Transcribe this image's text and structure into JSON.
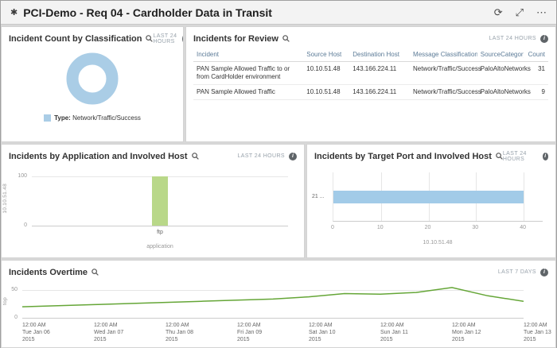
{
  "header": {
    "title": "PCI-Demo - Req 04 - Cardholder Data in Transit"
  },
  "icons": {
    "app": "✱",
    "refresh": "⟳",
    "expand": "⤢",
    "more": "⋯",
    "info": "i"
  },
  "panels": {
    "classification": {
      "title": "Incident Count by Classification",
      "time_range": "LAST 24 HOURS",
      "legend_label": "Type:",
      "legend_value": "Network/Traffic/Success"
    },
    "review": {
      "title": "Incidents for Review",
      "time_range": "LAST 24 HOURS",
      "columns": [
        "Incident",
        "Source Host",
        "Destination Host",
        "Message Classification",
        "SourceCategory",
        "Count"
      ],
      "rows": [
        [
          "PAN Sample Allowed Traffic to or from CardHolder environment",
          "10.10.51.48",
          "143.166.224.11",
          "Network/Traffic/Success",
          "PaloAltoNetworks",
          "31"
        ],
        [
          "PAN Sample Allowed Traffic",
          "10.10.51.48",
          "143.166.224.11",
          "Network/Traffic/Success",
          "PaloAltoNetworks",
          "9"
        ]
      ]
    },
    "by_application": {
      "title": "Incidents by Application and Involved Host",
      "time_range": "LAST 24 HOURS"
    },
    "by_port": {
      "title": "Incidents by Target Port and Involved Host",
      "time_range": "LAST 24 HOURS"
    },
    "overtime": {
      "title": "Incidents Overtime",
      "time_range": "LAST 7 DAYS"
    }
  },
  "chart_data": [
    {
      "id": "incident-count-by-classification",
      "type": "pie",
      "donut": true,
      "labels": [
        "Network/Traffic/Success"
      ],
      "values": [
        40
      ],
      "colors": [
        "#aacde6"
      ],
      "legend_position": "bottom"
    },
    {
      "id": "incidents-by-application-and-involved-host",
      "type": "bar",
      "categories": [
        "ftp"
      ],
      "series": [
        {
          "name": "10.10.51.48",
          "values": [
            100
          ],
          "color": "#b9d889"
        }
      ],
      "xlabel": "application",
      "ylabel": "10.10.51.48",
      "yticks": [
        0,
        100
      ],
      "ylim": [
        0,
        112
      ],
      "grid": true
    },
    {
      "id": "incidents-by-target-port-and-involved-host",
      "type": "bar-horizontal",
      "categories": [
        "21 ..."
      ],
      "series": [
        {
          "name": "10.10.51.48",
          "values": [
            40
          ],
          "color": "#a2cbe8"
        }
      ],
      "xlabel": "10.10.51.48",
      "xticks": [
        0,
        10,
        20,
        30,
        40
      ],
      "xlim": [
        0,
        44
      ],
      "grid": true
    },
    {
      "id": "incidents-overtime",
      "type": "line",
      "ylabel": "top",
      "yticks": [
        0,
        50
      ],
      "ylim": [
        0,
        62
      ],
      "color": "#65a637",
      "x_labels": [
        [
          "12:00 AM",
          "Tue Jan 06",
          "2015"
        ],
        [
          "12:00 AM",
          "Wed Jan 07",
          "2015"
        ],
        [
          "12:00 AM",
          "Thu Jan 08",
          "2015"
        ],
        [
          "12:00 AM",
          "Fri Jan 09",
          "2015"
        ],
        [
          "12:00 AM",
          "Sat Jan 10",
          "2015"
        ],
        [
          "12:00 AM",
          "Sun Jan 11",
          "2015"
        ],
        [
          "12:00 AM",
          "Mon Jan 12",
          "2015"
        ],
        [
          "12:00 AM",
          "Tue Jan 13",
          "2015"
        ]
      ],
      "values": [
        20,
        22,
        24,
        26,
        28,
        30,
        32,
        34,
        38,
        44,
        43,
        46,
        55,
        40,
        30
      ],
      "grid": true
    }
  ]
}
